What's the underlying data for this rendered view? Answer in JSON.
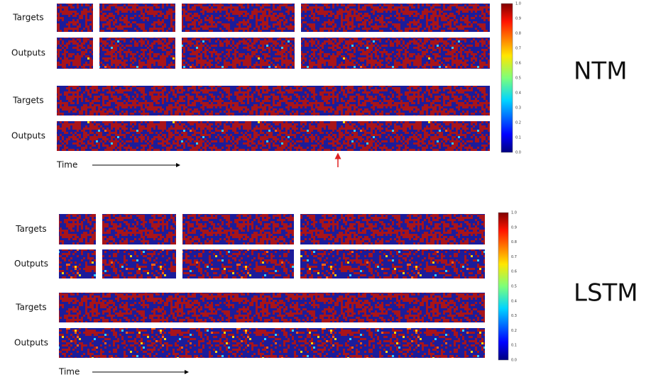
{
  "ntm": {
    "title": "NTM",
    "row_labels": [
      "Targets",
      "Outputs",
      "Targets",
      "Outputs"
    ],
    "time_label": "Time",
    "colorbar_ticks": [
      "1.0",
      "0.9",
      "0.8",
      "0.7",
      "0.6",
      "0.5",
      "0.4",
      "0.3",
      "0.2",
      "0.1",
      "0.0"
    ]
  },
  "lstm": {
    "title": "LSTM",
    "row_labels": [
      "Targets",
      "Outputs",
      "Targets",
      "Outputs"
    ],
    "time_label": "Time",
    "colorbar_ticks": [
      "1.0",
      "0.9",
      "0.8",
      "0.7",
      "0.6",
      "0.5",
      "0.4",
      "0.3",
      "0.2",
      "0.1",
      "0.0"
    ]
  }
}
